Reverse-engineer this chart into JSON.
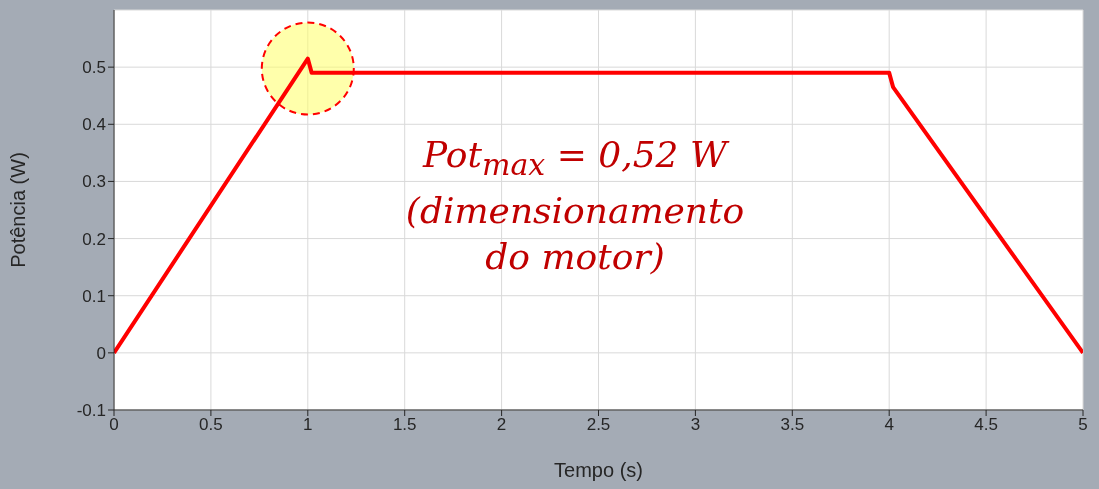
{
  "chart_data": {
    "type": "line",
    "xlabel": "Tempo (s)",
    "ylabel": "Potência (W)",
    "x": [
      0,
      1,
      1.02,
      4,
      4.02,
      5
    ],
    "series": [
      {
        "color": "#ff0000",
        "values": [
          0,
          0.515,
          0.49,
          0.49,
          0.465,
          0
        ]
      }
    ],
    "xlim": [
      0,
      5
    ],
    "xticks": [
      0,
      0.5,
      1,
      1.5,
      2,
      2.5,
      3,
      3.5,
      4,
      4.5,
      5
    ],
    "ylim": [
      -0.1,
      0.6
    ],
    "yticks": [
      -0.1,
      0,
      0.1,
      0.2,
      0.3,
      0.4,
      0.5
    ],
    "grid": true,
    "marker": "none",
    "line_style": "solid",
    "annotations": [
      "Pot$_{max}$ = 0,52 W (dimensionamento do motor)"
    ]
  }
}
